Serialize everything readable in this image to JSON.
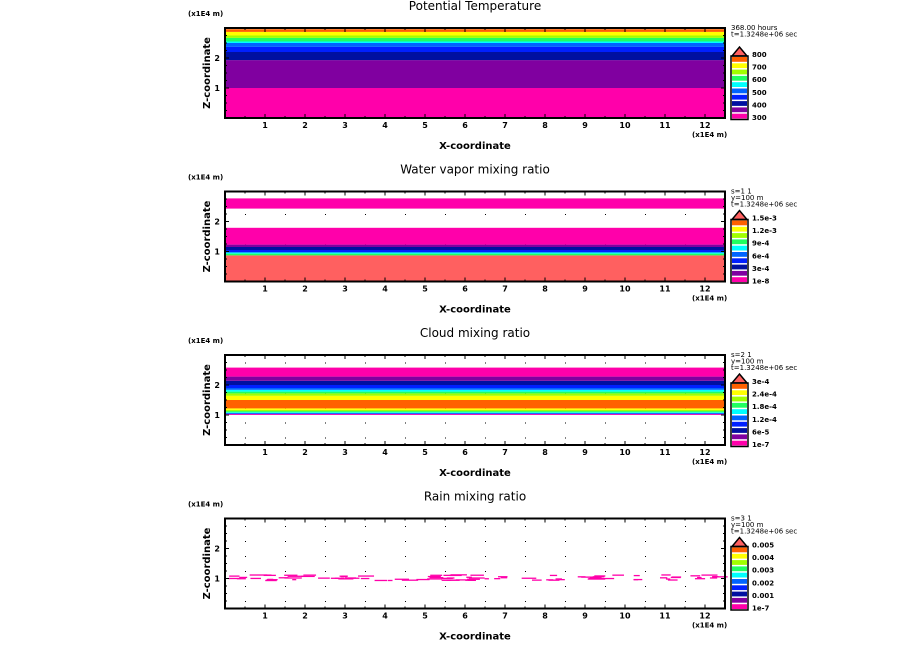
{
  "colors": {
    "levels": [
      "#ff00aa",
      "#8000a0",
      "#0010a0",
      "#0020ff",
      "#0064ff",
      "#00ffff",
      "#20ff60",
      "#a0ff00",
      "#ffff00",
      "#ff6000"
    ],
    "over": "#ff6060",
    "frame": "#000000"
  },
  "chart_data": [
    {
      "type": "heatmap",
      "title": "Potential Temperature",
      "xlabel": "X-coordinate",
      "ylabel": "Z-coordinate",
      "x_unit": "(x1E4 m)",
      "y_unit": "(x1E4 m)",
      "xlim": [
        0,
        12.5
      ],
      "ylim": [
        0,
        3
      ],
      "xticks": [
        "1",
        "2",
        "3",
        "4",
        "5",
        "6",
        "7",
        "8",
        "9",
        "10",
        "11",
        "12"
      ],
      "yticks": [
        "1",
        "2"
      ],
      "info": [
        "368.00 hours",
        "t=1.3248e+06 sec"
      ],
      "legend_labels": [
        "300",
        "400",
        "500",
        "600",
        "700",
        "800"
      ],
      "bands": [
        {
          "z": [
            0,
            1
          ],
          "level": 0
        },
        {
          "z": [
            1,
            1.93
          ],
          "level": 1
        },
        {
          "z": [
            1.93,
            2.2
          ],
          "level": 2
        },
        {
          "z": [
            2.2,
            2.37
          ],
          "level": 3
        },
        {
          "z": [
            2.37,
            2.5
          ],
          "level": 4
        },
        {
          "z": [
            2.5,
            2.55
          ],
          "level": 5
        },
        {
          "z": [
            2.55,
            2.67
          ],
          "level": 6
        },
        {
          "z": [
            2.67,
            2.75
          ],
          "level": 7
        },
        {
          "z": [
            2.75,
            2.87
          ],
          "level": 8
        },
        {
          "z": [
            2.87,
            2.96
          ],
          "level": 9
        }
      ]
    },
    {
      "type": "heatmap",
      "title": "Water vapor mixing ratio",
      "xlabel": "X-coordinate",
      "ylabel": "Z-coordinate",
      "x_unit": "(x1E4 m)",
      "y_unit": "(x1E4 m)",
      "xlim": [
        0,
        12.5
      ],
      "ylim": [
        0,
        3
      ],
      "xticks": [
        "1",
        "2",
        "3",
        "4",
        "5",
        "6",
        "7",
        "8",
        "9",
        "10",
        "11",
        "12"
      ],
      "yticks": [
        "1",
        "2"
      ],
      "info": [
        "s=1 1",
        "y=100 m",
        "t=1.3248e+06 sec"
      ],
      "legend_labels": [
        "1e-8",
        "3e-4",
        "6e-4",
        "9e-4",
        "1.2e-3",
        "1.5e-3"
      ],
      "bands": [
        {
          "z": [
            0,
            0.87
          ],
          "level": "over"
        },
        {
          "z": [
            0.87,
            0.93
          ],
          "level": 6
        },
        {
          "z": [
            0.93,
            0.97
          ],
          "level": 5
        },
        {
          "z": [
            0.97,
            1.05
          ],
          "level": 3
        },
        {
          "z": [
            1.05,
            1.15
          ],
          "level": 2
        },
        {
          "z": [
            1.15,
            1.23
          ],
          "level": 1
        },
        {
          "z": [
            1.23,
            1.79
          ],
          "level": 0
        },
        {
          "z": [
            2.43,
            2.77
          ],
          "level": 0
        }
      ]
    },
    {
      "type": "heatmap",
      "title": "Cloud mixing ratio",
      "xlabel": "X-coordinate",
      "ylabel": "Z-coordinate",
      "x_unit": "(x1E4 m)",
      "y_unit": "(x1E4 m)",
      "xlim": [
        0,
        12.5
      ],
      "ylim": [
        0,
        3
      ],
      "xticks": [
        "1",
        "2",
        "3",
        "4",
        "5",
        "6",
        "7",
        "8",
        "9",
        "10",
        "11",
        "12"
      ],
      "yticks": [
        "1",
        "2"
      ],
      "info": [
        "s=2 1",
        "y=100 m",
        "t=1.3248e+06 sec"
      ],
      "legend_labels": [
        "1e-7",
        "6e-5",
        "1.2e-4",
        "1.8e-4",
        "2.4e-4",
        "3e-4"
      ],
      "bands": [
        {
          "z": [
            1.0,
            1.03
          ],
          "level": 0
        },
        {
          "z": [
            1.03,
            1.06
          ],
          "level": 3
        },
        {
          "z": [
            1.06,
            1.09
          ],
          "level": 5
        },
        {
          "z": [
            1.09,
            1.13
          ],
          "level": 6
        },
        {
          "z": [
            1.13,
            1.17
          ],
          "level": 7
        },
        {
          "z": [
            1.17,
            1.22
          ],
          "level": 8
        },
        {
          "z": [
            1.22,
            1.5
          ],
          "level": 9
        },
        {
          "z": [
            1.5,
            1.64
          ],
          "level": 8
        },
        {
          "z": [
            1.64,
            1.72
          ],
          "level": 7
        },
        {
          "z": [
            1.72,
            1.78
          ],
          "level": 6
        },
        {
          "z": [
            1.78,
            1.84
          ],
          "level": 5
        },
        {
          "z": [
            1.84,
            1.9
          ],
          "level": 4
        },
        {
          "z": [
            1.9,
            2.0
          ],
          "level": 3
        },
        {
          "z": [
            2.0,
            2.14
          ],
          "level": 2
        },
        {
          "z": [
            2.14,
            2.28
          ],
          "level": 1
        },
        {
          "z": [
            2.28,
            2.58
          ],
          "level": 0
        }
      ]
    },
    {
      "type": "heatmap",
      "title": "Rain mixing ratio",
      "xlabel": "X-coordinate",
      "ylabel": "Z-coordinate",
      "x_unit": "(x1E4 m)",
      "y_unit": "(x1E4 m)",
      "xlim": [
        0,
        12.5
      ],
      "ylim": [
        0,
        3
      ],
      "xticks": [
        "1",
        "2",
        "3",
        "4",
        "5",
        "6",
        "7",
        "8",
        "9",
        "10",
        "11",
        "12"
      ],
      "yticks": [
        "1",
        "2"
      ],
      "info": [
        "s=3 1",
        "y=100 m",
        "t=1.3248e+06 sec"
      ],
      "legend_labels": [
        "1e-7",
        "0.001",
        "0.002",
        "0.003",
        "0.004",
        "0.005"
      ],
      "bands": [],
      "streaks": {
        "z_range": [
          0.95,
          1.15
        ],
        "level": 0
      }
    }
  ]
}
